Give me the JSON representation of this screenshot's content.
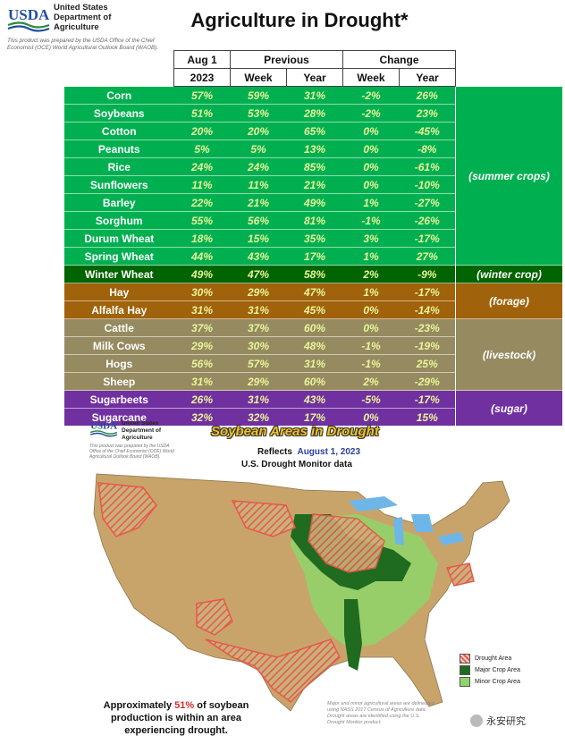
{
  "header": {
    "org_name": "United States Department of Agriculture",
    "logo_text": "USDA",
    "note": "This product was prepared by the USDA Office of the Chief Economist (OCE) World Agricultural Outlook Board (WAOB).",
    "title": "Agriculture in Drought*"
  },
  "table": {
    "header_row1": {
      "aug1": "Aug 1",
      "previous": "Previous",
      "change": "Change"
    },
    "header_row2": {
      "y2023": "2023",
      "week": "Week",
      "year": "Year",
      "chg_week": "Week",
      "chg_year": "Year"
    },
    "colors": {
      "summer": "#00b050",
      "winter": "#006400",
      "forage": "#a0620a",
      "livestock": "#968a60",
      "sugar": "#7030a0",
      "value_text": "#e9f59a"
    },
    "rows": [
      {
        "crop": "Corn",
        "aug1": "57%",
        "prev_week": "59%",
        "prev_year": "31%",
        "chg_week": "-2%",
        "chg_year": "26%"
      },
      {
        "crop": "Soybeans",
        "aug1": "51%",
        "prev_week": "53%",
        "prev_year": "28%",
        "chg_week": "-2%",
        "chg_year": "23%"
      },
      {
        "crop": "Cotton",
        "aug1": "20%",
        "prev_week": "20%",
        "prev_year": "65%",
        "chg_week": "0%",
        "chg_year": "-45%"
      },
      {
        "crop": "Peanuts",
        "aug1": "5%",
        "prev_week": "5%",
        "prev_year": "13%",
        "chg_week": "0%",
        "chg_year": "-8%"
      },
      {
        "crop": "Rice",
        "aug1": "24%",
        "prev_week": "24%",
        "prev_year": "85%",
        "chg_week": "0%",
        "chg_year": "-61%"
      },
      {
        "crop": "Sunflowers",
        "aug1": "11%",
        "prev_week": "11%",
        "prev_year": "21%",
        "chg_week": "0%",
        "chg_year": "-10%"
      },
      {
        "crop": "Barley",
        "aug1": "22%",
        "prev_week": "21%",
        "prev_year": "49%",
        "chg_week": "1%",
        "chg_year": "-27%"
      },
      {
        "crop": "Sorghum",
        "aug1": "55%",
        "prev_week": "56%",
        "prev_year": "81%",
        "chg_week": "-1%",
        "chg_year": "-26%"
      },
      {
        "crop": "Durum Wheat",
        "aug1": "18%",
        "prev_week": "15%",
        "prev_year": "35%",
        "chg_week": "3%",
        "chg_year": "-17%"
      },
      {
        "crop": "Spring Wheat",
        "aug1": "44%",
        "prev_week": "43%",
        "prev_year": "17%",
        "chg_week": "1%",
        "chg_year": "27%"
      },
      {
        "crop": "Winter Wheat",
        "aug1": "49%",
        "prev_week": "47%",
        "prev_year": "58%",
        "chg_week": "2%",
        "chg_year": "-9%"
      },
      {
        "crop": "Hay",
        "aug1": "30%",
        "prev_week": "29%",
        "prev_year": "47%",
        "chg_week": "1%",
        "chg_year": "-17%"
      },
      {
        "crop": "Alfalfa Hay",
        "aug1": "31%",
        "prev_week": "31%",
        "prev_year": "45%",
        "chg_week": "0%",
        "chg_year": "-14%"
      },
      {
        "crop": "Cattle",
        "aug1": "37%",
        "prev_week": "37%",
        "prev_year": "60%",
        "chg_week": "0%",
        "chg_year": "-23%"
      },
      {
        "crop": "Milk Cows",
        "aug1": "29%",
        "prev_week": "30%",
        "prev_year": "48%",
        "chg_week": "-1%",
        "chg_year": "-19%"
      },
      {
        "crop": "Hogs",
        "aug1": "56%",
        "prev_week": "57%",
        "prev_year": "31%",
        "chg_week": "-1%",
        "chg_year": "25%"
      },
      {
        "crop": "Sheep",
        "aug1": "31%",
        "prev_week": "29%",
        "prev_year": "60%",
        "chg_week": "2%",
        "chg_year": "-29%"
      },
      {
        "crop": "Sugarbeets",
        "aug1": "26%",
        "prev_week": "31%",
        "prev_year": "43%",
        "chg_week": "-5%",
        "chg_year": "-17%"
      },
      {
        "crop": "Sugarcane",
        "aug1": "32%",
        "prev_week": "32%",
        "prev_year": "17%",
        "chg_week": "0%",
        "chg_year": "15%"
      }
    ],
    "groups": [
      {
        "label": "(summer crops)",
        "color": "#00b050"
      },
      {
        "label": "(winter crop)",
        "color": "#006400"
      },
      {
        "label": "(forage)",
        "color": "#a0620a"
      },
      {
        "label": "(livestock)",
        "color": "#968a60"
      },
      {
        "label": "(sugar)",
        "color": "#7030a0"
      }
    ]
  },
  "map": {
    "title": "Soybean Areas in Drought",
    "reflects_prefix": "Reflects",
    "reflects_date": "August 1, 2023",
    "subtitle": "U.S. Drought Monitor data",
    "legend": [
      {
        "label": "Drought Area",
        "color": "#e8584a"
      },
      {
        "label": "Major Crop Area",
        "color": "#1f6b1f"
      },
      {
        "label": "Minor Crop Area",
        "color": "#8fd66a"
      }
    ],
    "approx_prefix": "Approximately",
    "approx_pct": "51%",
    "approx_suffix": "of soybean production is within an area experiencing drought.",
    "method_note": "Major and minor agricultural areas are delineated using NASS 2017 Census of Agriculture data. Drought areas are identified using the U.S. Drought Monitor product.",
    "watermark": "永安研究"
  },
  "chart_data": {
    "type": "table",
    "title": "Agriculture in Drought*",
    "columns": [
      "Aug 1 2023",
      "Previous Week",
      "Previous Year",
      "Change Week",
      "Change Year"
    ],
    "rows": [
      {
        "name": "Corn",
        "group": "(summer crops)",
        "values": [
          57,
          59,
          31,
          -2,
          26
        ]
      },
      {
        "name": "Soybeans",
        "group": "(summer crops)",
        "values": [
          51,
          53,
          28,
          -2,
          23
        ]
      },
      {
        "name": "Cotton",
        "group": "(summer crops)",
        "values": [
          20,
          20,
          65,
          0,
          -45
        ]
      },
      {
        "name": "Peanuts",
        "group": "(summer crops)",
        "values": [
          5,
          5,
          13,
          0,
          -8
        ]
      },
      {
        "name": "Rice",
        "group": "(summer crops)",
        "values": [
          24,
          24,
          85,
          0,
          -61
        ]
      },
      {
        "name": "Sunflowers",
        "group": "(summer crops)",
        "values": [
          11,
          11,
          21,
          0,
          -10
        ]
      },
      {
        "name": "Barley",
        "group": "(summer crops)",
        "values": [
          22,
          21,
          49,
          1,
          -27
        ]
      },
      {
        "name": "Sorghum",
        "group": "(summer crops)",
        "values": [
          55,
          56,
          81,
          -1,
          -26
        ]
      },
      {
        "name": "Durum Wheat",
        "group": "(summer crops)",
        "values": [
          18,
          15,
          35,
          3,
          -17
        ]
      },
      {
        "name": "Spring Wheat",
        "group": "(summer crops)",
        "values": [
          44,
          43,
          17,
          1,
          27
        ]
      },
      {
        "name": "Winter Wheat",
        "group": "(winter crop)",
        "values": [
          49,
          47,
          58,
          2,
          -9
        ]
      },
      {
        "name": "Hay",
        "group": "(forage)",
        "values": [
          30,
          29,
          47,
          1,
          -17
        ]
      },
      {
        "name": "Alfalfa Hay",
        "group": "(forage)",
        "values": [
          31,
          31,
          45,
          0,
          -14
        ]
      },
      {
        "name": "Cattle",
        "group": "(livestock)",
        "values": [
          37,
          37,
          60,
          0,
          -23
        ]
      },
      {
        "name": "Milk Cows",
        "group": "(livestock)",
        "values": [
          29,
          30,
          48,
          -1,
          -19
        ]
      },
      {
        "name": "Hogs",
        "group": "(livestock)",
        "values": [
          56,
          57,
          31,
          -1,
          25
        ]
      },
      {
        "name": "Sheep",
        "group": "(livestock)",
        "values": [
          31,
          29,
          60,
          2,
          -29
        ]
      },
      {
        "name": "Sugarbeets",
        "group": "(sugar)",
        "values": [
          26,
          31,
          43,
          -5,
          -17
        ]
      },
      {
        "name": "Sugarcane",
        "group": "(sugar)",
        "values": [
          32,
          32,
          17,
          0,
          15
        ]
      }
    ]
  }
}
